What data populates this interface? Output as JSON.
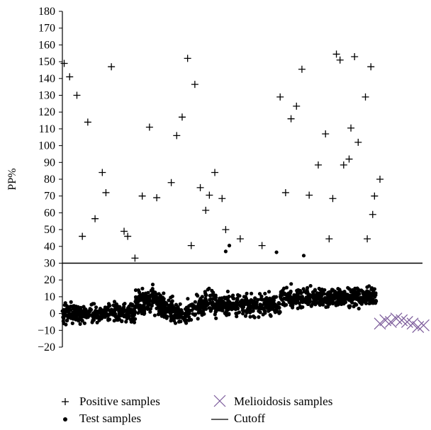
{
  "chart_data": {
    "type": "scatter",
    "title": "",
    "xlabel": "",
    "ylabel": "PP%",
    "ylim": [
      -20,
      180
    ],
    "yticks": [
      -20,
      -10,
      0,
      10,
      20,
      30,
      40,
      50,
      60,
      70,
      80,
      90,
      100,
      110,
      120,
      130,
      140,
      150,
      160,
      170,
      180
    ],
    "ytick_labels": [
      "−20",
      "−10",
      "0",
      "10",
      "20",
      "30",
      "40",
      "50",
      "60",
      "70",
      "80",
      "90",
      "100",
      "110",
      "120",
      "130",
      "140",
      "150",
      "160",
      "170",
      "180"
    ],
    "xlim": [
      0,
      100
    ],
    "grid": false,
    "legend_position": "bottom",
    "cutoff": 30,
    "colors": {
      "positive": "#000000",
      "test": "#000000",
      "melioidosis": "#7b5a9a",
      "cutoff": "#000000"
    },
    "series": [
      {
        "name": "Positive samples",
        "marker": "plus",
        "x": [
          0.5,
          2,
          4,
          5.5,
          7,
          9,
          11,
          12,
          13.5,
          17,
          18,
          20,
          22,
          24,
          26,
          30,
          31.5,
          33,
          34.5,
          35.5,
          36.5,
          38,
          39.5,
          40.5,
          42,
          44,
          45,
          49,
          55,
          60,
          61.5,
          63,
          64.5,
          66,
          68,
          70.5,
          72.5,
          73.5,
          74.5,
          75.5,
          76.5,
          77.5,
          79,
          79.5,
          80.5,
          81.5,
          83.5,
          84,
          85,
          85.5,
          86,
          87.5
        ],
        "y": [
          149,
          141,
          130,
          46,
          114,
          56.5,
          84,
          72,
          147,
          49,
          46,
          33,
          70,
          111,
          69,
          78,
          106,
          117,
          152,
          40.5,
          136.5,
          75,
          61.5,
          70.5,
          84,
          68.5,
          50,
          44.5,
          40.5,
          129,
          72,
          116,
          123.5,
          145.5,
          70.5,
          88.5,
          107,
          44.5,
          68.5,
          154.5,
          151,
          88.5,
          92,
          110.5,
          153,
          102,
          129,
          44.5,
          147,
          59,
          70,
          80
        ]
      },
      {
        "name": "Test samples",
        "marker": "dot",
        "x_range": [
          0,
          86.5
        ],
        "extra_points": [
          [
            45,
            37
          ],
          [
            46,
            40.5
          ],
          [
            59,
            36.5
          ],
          [
            66.5,
            34.5
          ]
        ]
      },
      {
        "name": "Melioidosis samples",
        "marker": "x",
        "x": [
          87.5,
          89,
          90.5,
          92,
          93.5,
          95,
          96.5,
          98,
          99.5
        ],
        "y": [
          -6,
          -4,
          -5,
          -3,
          -4,
          -5,
          -6,
          -8,
          -7
        ]
      },
      {
        "name": "Cutoff",
        "marker": "line",
        "y": 30
      }
    ]
  },
  "legend": {
    "positive": "Positive samples",
    "test": "Test samples",
    "melioidosis": "Melioidosis samples",
    "cutoff": "Cutoff"
  }
}
